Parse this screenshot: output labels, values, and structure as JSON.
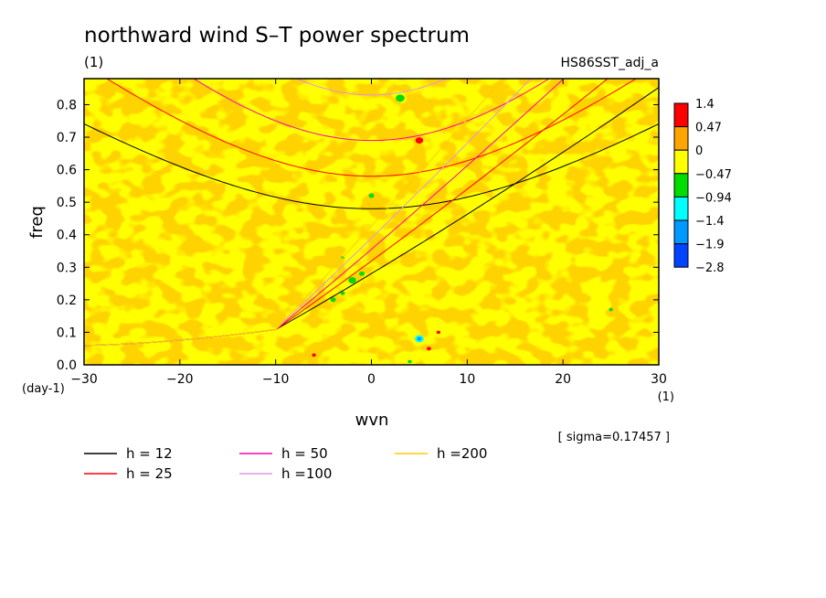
{
  "chart_data": {
    "type": "heatmap",
    "title": "northward wind S–T power spectrum",
    "units": "(1)",
    "run_label": "HS86SST_adj_a",
    "xlabel": "wvn",
    "xunits": "(1)",
    "ylabel": "freq",
    "yunits": "(day-1)",
    "xlim": [
      -30,
      30
    ],
    "ylim": [
      0,
      0.88
    ],
    "xticks": [
      -30,
      -20,
      -10,
      0,
      10,
      20,
      30
    ],
    "yticks": [
      0.0,
      0.1,
      0.2,
      0.3,
      0.4,
      0.5,
      0.6,
      0.7,
      0.8
    ],
    "sigma_text": "[ sigma=0.17457 ]",
    "colorbar": {
      "levels": [
        "1.4",
        "0.47",
        "0",
        "−0.47",
        "−0.94",
        "−1.4",
        "−1.9",
        "−2.8"
      ],
      "colors": [
        "#ff0000",
        "#ffa500",
        "#ffff00",
        "#00dd00",
        "#00ffff",
        "#0099ff",
        "#0044ff"
      ]
    },
    "dispersion_curves": [
      {
        "label": "h = 12",
        "h": 12,
        "color": "#000000"
      },
      {
        "label": "h = 25",
        "h": 25,
        "color": "#ff0000"
      },
      {
        "label": "h = 50",
        "h": 50,
        "color": "#ff00aa"
      },
      {
        "label": "h =100",
        "h": 100,
        "color": "#dd99dd"
      },
      {
        "label": "h =200",
        "h": 200,
        "color": "#ffcc00"
      }
    ]
  }
}
